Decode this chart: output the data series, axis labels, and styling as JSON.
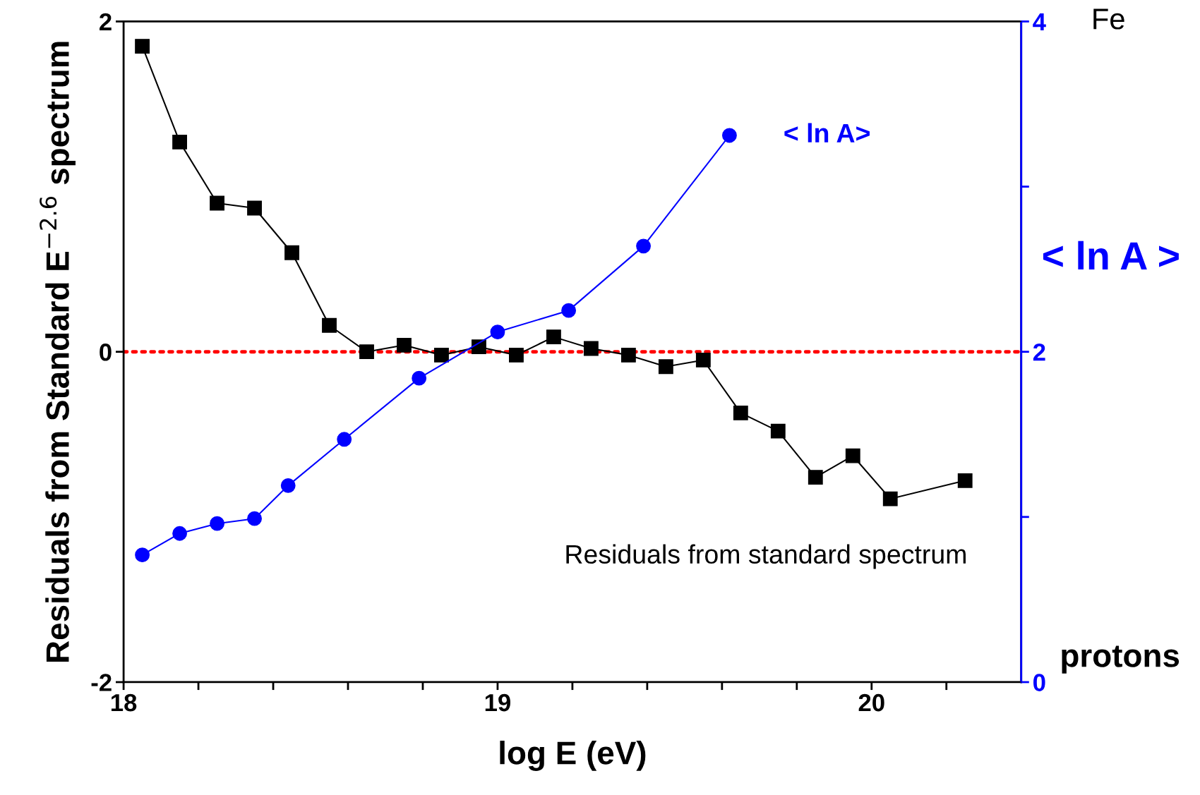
{
  "chart_data": {
    "type": "line",
    "xlabel": "log E (eV)",
    "ylabel": "Residuals from Standard E$^{−2.6}$ spectrum",
    "y2label": "< ln A >",
    "xlim": [
      18,
      20.4
    ],
    "xticks": [
      18,
      {
        "value": 18.2,
        "label": null
      },
      {
        "value": 18.4,
        "label": null
      },
      {
        "value": 18.6,
        "label": null
      },
      {
        "value": 18.8,
        "label": null
      },
      19,
      {
        "value": 19.2,
        "label": null
      },
      {
        "value": 19.4,
        "label": null
      },
      {
        "value": 19.6,
        "label": null
      },
      {
        "value": 19.8,
        "label": null
      },
      20,
      {
        "value": 20.2,
        "label": null
      }
    ],
    "ylim": [
      -2,
      2
    ],
    "yticks": [
      -2,
      0,
      2
    ],
    "y2lim": [
      0,
      4
    ],
    "y2ticks": [
      0,
      {
        "value": 1,
        "label": null
      },
      2,
      {
        "value": 3,
        "label": null
      },
      4
    ],
    "grid": false,
    "legend": false,
    "series": [
      {
        "name": "Residuals from standard spectrum",
        "color": "#000000",
        "marker": "square",
        "x": [
          18.05,
          18.15,
          18.25,
          18.35,
          18.45,
          18.55,
          18.65,
          18.75,
          18.85,
          18.95,
          19.05,
          19.15,
          19.25,
          19.35,
          19.45,
          19.55,
          19.65,
          19.75,
          19.85,
          19.95,
          20.05,
          20.25
        ],
        "values": [
          1.85,
          1.27,
          0.9,
          0.87,
          0.6,
          0.16,
          0.0,
          0.04,
          -0.02,
          0.03,
          -0.02,
          0.09,
          0.02,
          -0.02,
          -0.09,
          -0.05,
          -0.37,
          -0.48,
          -0.76,
          -0.63,
          -0.89,
          -0.78
        ]
      },
      {
        "name": "< ln A>",
        "color": "#0000ff",
        "marker": "circle",
        "axis": "y2",
        "x": [
          18.05,
          18.15,
          18.25,
          18.35,
          18.44,
          18.59,
          18.79,
          19.0,
          19.19,
          19.39,
          19.62
        ],
        "values": [
          0.77,
          0.9,
          0.96,
          0.99,
          1.19,
          1.47,
          1.84,
          2.12,
          2.25,
          2.64,
          3.31
        ]
      }
    ],
    "ref_lines": [
      {
        "axis": "y",
        "value": 0,
        "color": "#ff0000",
        "line_style": "dotted"
      }
    ],
    "annotations": [
      "Fe",
      "protons"
    ]
  }
}
